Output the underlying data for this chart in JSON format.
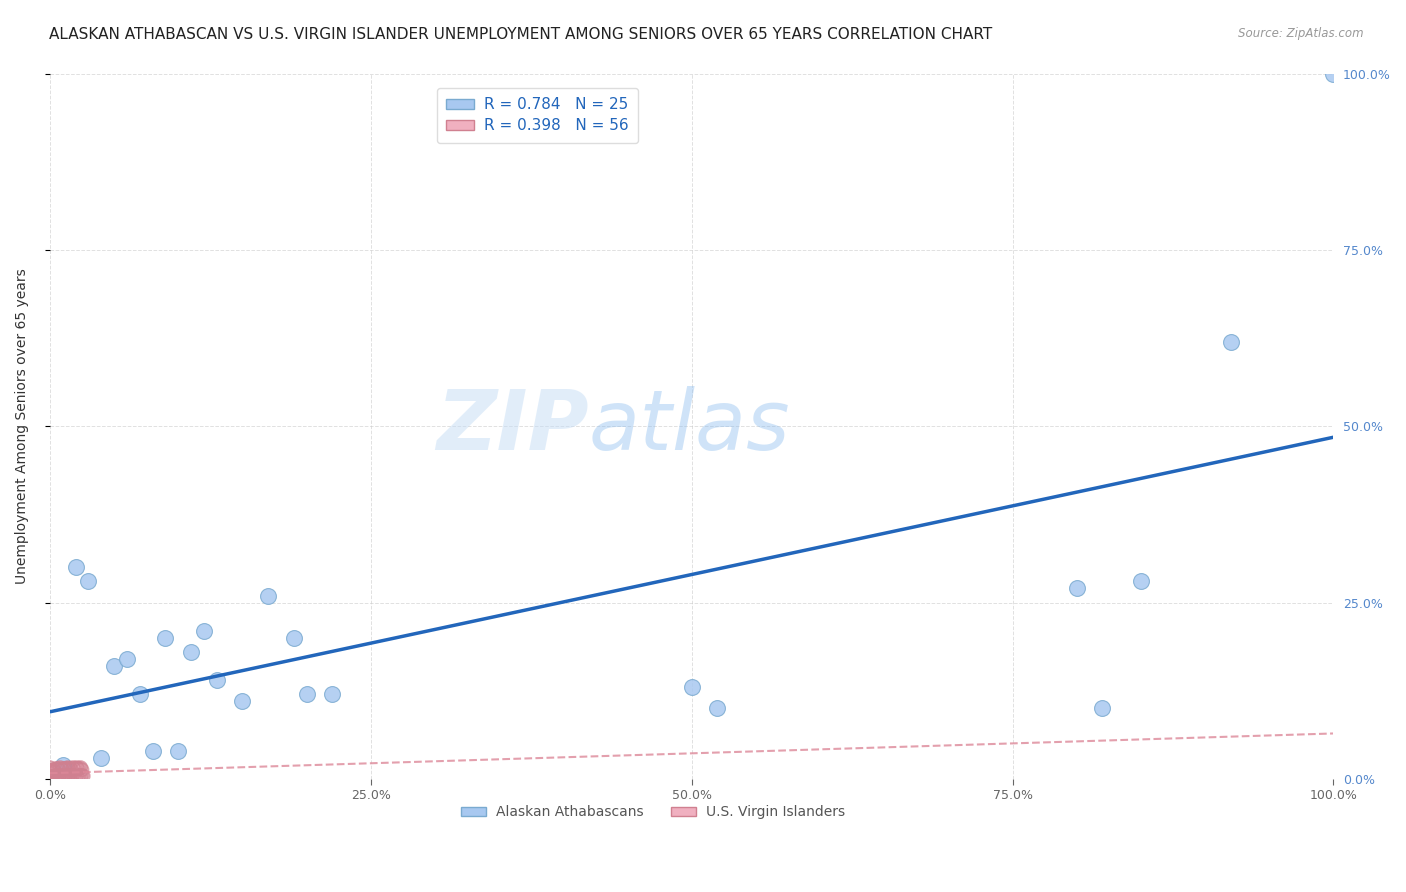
{
  "title": "ALASKAN ATHABASCAN VS U.S. VIRGIN ISLANDER UNEMPLOYMENT AMONG SENIORS OVER 65 YEARS CORRELATION CHART",
  "source": "Source: ZipAtlas.com",
  "ylabel": "Unemployment Among Seniors over 65 years",
  "watermark_zip": "ZIP",
  "watermark_atlas": "atlas",
  "legend_label_blue": "Alaskan Athabascans",
  "legend_label_pink": "U.S. Virgin Islanders",
  "blue_color": "#a8c8f0",
  "blue_edge_color": "#7aaad0",
  "pink_color": "#f0b0c0",
  "pink_edge_color": "#d08090",
  "regression_blue_color": "#2266bb",
  "regression_pink_color": "#dd8899",
  "blue_R": 0.784,
  "blue_N": 25,
  "pink_R": 0.398,
  "pink_N": 56,
  "blue_points_x": [
    0.01,
    0.02,
    0.03,
    0.04,
    0.05,
    0.06,
    0.07,
    0.08,
    0.09,
    0.1,
    0.11,
    0.12,
    0.13,
    0.15,
    0.17,
    0.19,
    0.2,
    0.22,
    0.5,
    0.52,
    0.8,
    0.82,
    0.85,
    0.92,
    1.0
  ],
  "blue_points_y": [
    0.02,
    0.3,
    0.28,
    0.03,
    0.16,
    0.17,
    0.12,
    0.04,
    0.2,
    0.04,
    0.18,
    0.21,
    0.14,
    0.11,
    0.26,
    0.2,
    0.12,
    0.12,
    0.13,
    0.1,
    0.27,
    0.1,
    0.28,
    0.62,
    1.0
  ],
  "pink_points_x": [
    0.0,
    0.0,
    0.0,
    0.0,
    0.0,
    0.001,
    0.001,
    0.002,
    0.002,
    0.003,
    0.003,
    0.004,
    0.004,
    0.005,
    0.005,
    0.006,
    0.006,
    0.007,
    0.007,
    0.008,
    0.008,
    0.009,
    0.009,
    0.01,
    0.01,
    0.011,
    0.011,
    0.012,
    0.012,
    0.013,
    0.013,
    0.014,
    0.014,
    0.015,
    0.015,
    0.016,
    0.016,
    0.017,
    0.017,
    0.018,
    0.018,
    0.019,
    0.019,
    0.02,
    0.02,
    0.021,
    0.021,
    0.022,
    0.022,
    0.023,
    0.023,
    0.024,
    0.024,
    0.025,
    0.025,
    0.026
  ],
  "pink_points_y": [
    0.0,
    0.004,
    0.008,
    0.012,
    0.016,
    0.002,
    0.01,
    0.003,
    0.012,
    0.004,
    0.014,
    0.002,
    0.01,
    0.003,
    0.014,
    0.005,
    0.015,
    0.004,
    0.013,
    0.005,
    0.016,
    0.004,
    0.014,
    0.003,
    0.013,
    0.004,
    0.015,
    0.003,
    0.014,
    0.005,
    0.015,
    0.004,
    0.016,
    0.005,
    0.014,
    0.004,
    0.015,
    0.003,
    0.013,
    0.005,
    0.016,
    0.004,
    0.014,
    0.003,
    0.015,
    0.004,
    0.016,
    0.003,
    0.014,
    0.005,
    0.015,
    0.004,
    0.016,
    0.005,
    0.013,
    0.004
  ],
  "xlim": [
    0.0,
    1.0
  ],
  "ylim": [
    0.0,
    1.0
  ],
  "xticks": [
    0.0,
    0.25,
    0.5,
    0.75,
    1.0
  ],
  "yticks": [
    0.0,
    0.25,
    0.5,
    0.75,
    1.0
  ],
  "grid_color": "#cccccc",
  "background_color": "#ffffff",
  "title_fontsize": 11,
  "ylabel_fontsize": 10,
  "tick_fontsize": 9,
  "legend_fontsize": 11,
  "scatter_size_blue": 130,
  "scatter_size_pink": 90,
  "regression_blue_lw": 2.5,
  "regression_pink_lw": 1.5
}
